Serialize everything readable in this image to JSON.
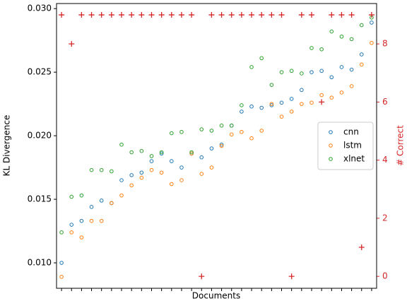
{
  "chart_data": {
    "type": "scatter",
    "xlabel": "Documents",
    "ylabel": "KL Divergence",
    "y2label": "# Correct",
    "categories": [
      null,
      null,
      null,
      null,
      null,
      null,
      null,
      null,
      null,
      null,
      null,
      null,
      null,
      null,
      null,
      null,
      null,
      null,
      null,
      null,
      null,
      null,
      null,
      null,
      null,
      null,
      null,
      null,
      null,
      null,
      null,
      null
    ],
    "series": [
      {
        "name": "cnn",
        "color": "#1f77b4",
        "values": [
          0.01,
          0.013,
          0.0133,
          0.0144,
          0.0149,
          0.0147,
          0.0165,
          0.0169,
          0.0171,
          0.018,
          0.0186,
          0.018,
          0.0175,
          0.0186,
          0.0183,
          0.019,
          0.0193,
          0.0208,
          0.0219,
          0.0223,
          0.0222,
          0.0224,
          0.0226,
          0.0229,
          0.0236,
          0.025,
          0.0251,
          0.0246,
          0.0254,
          0.0252,
          0.0264,
          0.0289
        ]
      },
      {
        "name": "lstm",
        "color": "#ff7f0e",
        "values": [
          0.0089,
          0.0124,
          0.012,
          0.0133,
          0.0133,
          0.0147,
          0.0153,
          0.0161,
          0.0167,
          0.0173,
          0.0171,
          0.0162,
          0.0165,
          0.0186,
          0.017,
          0.0175,
          0.0192,
          0.0201,
          0.0203,
          0.0198,
          0.0204,
          0.0225,
          0.0215,
          0.0219,
          0.0225,
          0.0226,
          0.0232,
          0.023,
          0.0234,
          0.0239,
          0.0256,
          0.0273
        ]
      },
      {
        "name": "xlnet",
        "color": "#2ca02c",
        "values": [
          0.0124,
          0.0152,
          0.0153,
          0.0173,
          0.0173,
          0.0172,
          0.0193,
          0.0187,
          0.0188,
          0.0184,
          0.0187,
          0.0202,
          0.0203,
          0.0187,
          0.0205,
          0.0204,
          0.0208,
          0.0208,
          0.0224,
          0.0254,
          0.0261,
          0.024,
          0.025,
          0.0251,
          0.0249,
          0.0269,
          0.0268,
          0.0282,
          0.0278,
          0.0276,
          0.0287,
          0.0293
        ]
      },
      {
        "color": "#d62728",
        "axis": "y2",
        "marker": "plus",
        "values": [
          9,
          8,
          9,
          9,
          9,
          9,
          9,
          9,
          9,
          9,
          9,
          9,
          9,
          9,
          0,
          9,
          9,
          9,
          9,
          9,
          9,
          9,
          9,
          0,
          9,
          9,
          6,
          9,
          9,
          9,
          1,
          9
        ]
      }
    ],
    "ylim": [
      0.008,
      0.0304
    ],
    "yticks": [
      {
        "value": 0.01,
        "label": "0.010"
      },
      {
        "value": 0.015,
        "label": "0.015"
      },
      {
        "value": 0.02,
        "label": "0.020"
      },
      {
        "value": 0.025,
        "label": "0.025"
      },
      {
        "value": 0.03,
        "label": "0.030"
      }
    ],
    "y2lim": [
      -0.41,
      9.39
    ],
    "y2ticks": [
      0,
      2,
      4,
      6,
      8
    ],
    "legend": "center right"
  }
}
